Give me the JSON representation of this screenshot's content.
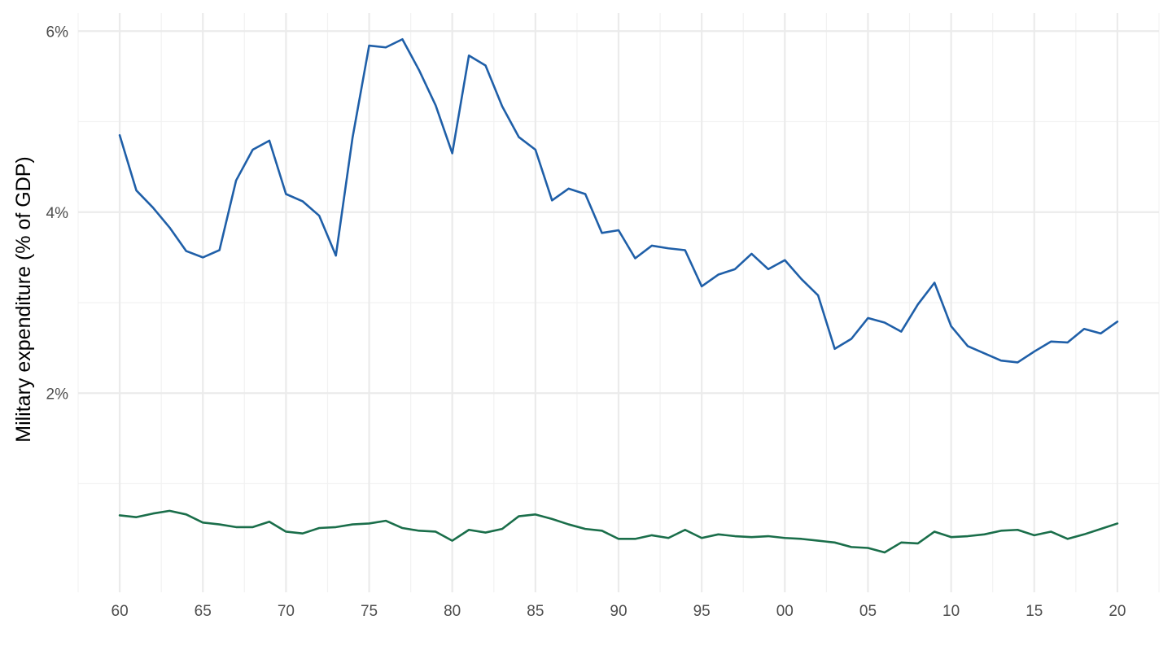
{
  "chart_data": {
    "type": "line",
    "title": "",
    "xlabel": "",
    "ylabel": "Military expenditure (% of GDP)",
    "xlim": [
      1957.5,
      2022.5
    ],
    "ylim": [
      -0.2,
      6.2
    ],
    "x_major_ticks": [
      1960,
      1965,
      1970,
      1975,
      1980,
      1985,
      1990,
      1995,
      2000,
      2005,
      2010,
      2015,
      2020
    ],
    "x_tick_labels": [
      "60",
      "65",
      "70",
      "75",
      "80",
      "85",
      "90",
      "95",
      "00",
      "05",
      "10",
      "15",
      "20"
    ],
    "y_major_ticks": [
      2,
      4,
      6
    ],
    "y_tick_labels": [
      "2%",
      "4%",
      "6%"
    ],
    "y_minor_ticks": [
      1,
      3,
      5
    ],
    "grid": true,
    "legend": "none",
    "series": [
      {
        "color": "#1f5fa8",
        "x": [
          1960,
          1961,
          1962,
          1963,
          1964,
          1965,
          1966,
          1967,
          1968,
          1969,
          1970,
          1971,
          1972,
          1973,
          1974,
          1975,
          1976,
          1977,
          1978,
          1979,
          1980,
          1981,
          1982,
          1983,
          1984,
          1985,
          1986,
          1987,
          1988,
          1989,
          1990,
          1991,
          1992,
          1993,
          1994,
          1995,
          1996,
          1997,
          1998,
          1999,
          2000,
          2001,
          2002,
          2003,
          2004,
          2005,
          2006,
          2007,
          2008,
          2009,
          2010,
          2011,
          2012,
          2013,
          2014,
          2015,
          2016,
          2017,
          2018,
          2019,
          2020
        ],
        "values": [
          4.85,
          4.24,
          4.05,
          3.83,
          3.57,
          3.5,
          3.58,
          4.35,
          4.69,
          4.79,
          4.2,
          4.12,
          3.96,
          3.52,
          4.82,
          5.84,
          5.82,
          5.91,
          5.57,
          5.18,
          4.65,
          5.73,
          5.62,
          5.17,
          4.83,
          4.69,
          4.13,
          4.26,
          4.2,
          3.77,
          3.8,
          3.49,
          3.63,
          3.6,
          3.58,
          3.18,
          3.31,
          3.37,
          3.54,
          3.37,
          3.47,
          3.26,
          3.08,
          2.49,
          2.6,
          2.83,
          2.78,
          2.68,
          2.98,
          3.22,
          2.74,
          2.52,
          2.44,
          2.36,
          2.34,
          2.46,
          2.57,
          2.56,
          2.71,
          2.66,
          2.79
        ]
      },
      {
        "color": "#1a6e4a",
        "x": [
          1960,
          1961,
          1962,
          1963,
          1964,
          1965,
          1966,
          1967,
          1968,
          1969,
          1970,
          1971,
          1972,
          1973,
          1974,
          1975,
          1976,
          1977,
          1978,
          1979,
          1980,
          1981,
          1982,
          1983,
          1984,
          1985,
          1986,
          1987,
          1988,
          1989,
          1990,
          1991,
          1992,
          1993,
          1994,
          1995,
          1996,
          1997,
          1998,
          1999,
          2000,
          2001,
          2002,
          2003,
          2004,
          2005,
          2006,
          2007,
          2008,
          2009,
          2010,
          2011,
          2012,
          2013,
          2014,
          2015,
          2016,
          2017,
          2018,
          2019,
          2020
        ],
        "values": [
          0.65,
          0.63,
          0.67,
          0.7,
          0.66,
          0.57,
          0.55,
          0.52,
          0.52,
          0.58,
          0.47,
          0.45,
          0.51,
          0.52,
          0.55,
          0.56,
          0.59,
          0.51,
          0.48,
          0.47,
          0.37,
          0.49,
          0.46,
          0.5,
          0.64,
          0.66,
          0.61,
          0.55,
          0.5,
          0.48,
          0.39,
          0.39,
          0.43,
          0.4,
          0.49,
          0.4,
          0.44,
          0.42,
          0.41,
          0.42,
          0.4,
          0.39,
          0.37,
          0.35,
          0.3,
          0.29,
          0.24,
          0.35,
          0.34,
          0.47,
          0.41,
          0.42,
          0.44,
          0.48,
          0.49,
          0.43,
          0.47,
          0.39,
          0.44,
          0.5,
          0.56
        ]
      }
    ]
  }
}
